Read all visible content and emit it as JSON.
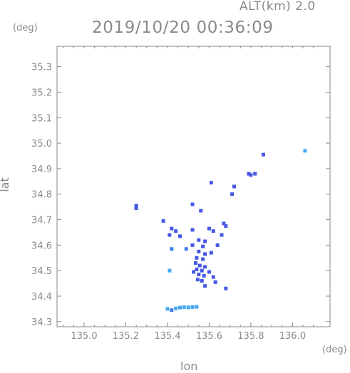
{
  "header": {
    "alt_label": "ALT(km) 2.0",
    "timestamp": "2019/10/20 00:36:09"
  },
  "chart_data": {
    "type": "scatter",
    "title": "2019/10/20 00:36:09",
    "xlabel": "lon",
    "ylabel": "lat",
    "x_unit": "(deg)",
    "y_unit": "(deg)",
    "xlim": [
      134.87,
      136.18
    ],
    "ylim": [
      34.28,
      35.38
    ],
    "x_ticks": [
      "135.0",
      "135.2",
      "135.4",
      "135.6",
      "135.8",
      "136.0"
    ],
    "y_ticks": [
      "34.3",
      "34.4",
      "34.5",
      "34.6",
      "34.7",
      "34.8",
      "34.9",
      "35.0",
      "35.1",
      "35.2",
      "35.3"
    ],
    "grid": false,
    "colors": {
      "echo_dark": "#4657e6",
      "echo_mid": "#3c7ee8",
      "echo_light": "#45a8f2",
      "axis": "#8a8a8a"
    },
    "points": [
      {
        "lon": 136.06,
        "lat": 34.97,
        "level": "light"
      },
      {
        "lon": 135.86,
        "lat": 34.955,
        "level": "dark"
      },
      {
        "lon": 135.79,
        "lat": 34.88,
        "level": "dark"
      },
      {
        "lon": 135.8,
        "lat": 34.875,
        "level": "dark"
      },
      {
        "lon": 135.82,
        "lat": 34.88,
        "level": "dark"
      },
      {
        "lon": 135.61,
        "lat": 34.845,
        "level": "dark"
      },
      {
        "lon": 135.72,
        "lat": 34.83,
        "level": "dark"
      },
      {
        "lon": 135.71,
        "lat": 34.8,
        "level": "dark"
      },
      {
        "lon": 135.25,
        "lat": 34.755,
        "level": "dark"
      },
      {
        "lon": 135.25,
        "lat": 34.745,
        "level": "dark"
      },
      {
        "lon": 135.52,
        "lat": 34.76,
        "level": "dark"
      },
      {
        "lon": 135.56,
        "lat": 34.735,
        "level": "dark"
      },
      {
        "lon": 135.38,
        "lat": 34.695,
        "level": "dark"
      },
      {
        "lon": 135.67,
        "lat": 34.685,
        "level": "dark"
      },
      {
        "lon": 135.68,
        "lat": 34.675,
        "level": "dark"
      },
      {
        "lon": 135.42,
        "lat": 34.665,
        "level": "dark"
      },
      {
        "lon": 135.44,
        "lat": 34.655,
        "level": "dark"
      },
      {
        "lon": 135.52,
        "lat": 34.66,
        "level": "dark"
      },
      {
        "lon": 135.6,
        "lat": 34.665,
        "level": "dark"
      },
      {
        "lon": 135.62,
        "lat": 34.655,
        "level": "dark"
      },
      {
        "lon": 135.41,
        "lat": 34.64,
        "level": "dark"
      },
      {
        "lon": 135.46,
        "lat": 34.635,
        "level": "dark"
      },
      {
        "lon": 135.55,
        "lat": 34.62,
        "level": "dark"
      },
      {
        "lon": 135.58,
        "lat": 34.615,
        "level": "dark"
      },
      {
        "lon": 135.66,
        "lat": 34.64,
        "level": "dark"
      },
      {
        "lon": 135.64,
        "lat": 34.6,
        "level": "dark"
      },
      {
        "lon": 135.52,
        "lat": 34.6,
        "level": "dark"
      },
      {
        "lon": 135.57,
        "lat": 34.595,
        "level": "dark"
      },
      {
        "lon": 135.42,
        "lat": 34.585,
        "level": "mid"
      },
      {
        "lon": 135.49,
        "lat": 34.585,
        "level": "mid"
      },
      {
        "lon": 135.55,
        "lat": 34.575,
        "level": "dark"
      },
      {
        "lon": 135.58,
        "lat": 34.565,
        "level": "dark"
      },
      {
        "lon": 135.61,
        "lat": 34.57,
        "level": "dark"
      },
      {
        "lon": 135.54,
        "lat": 34.55,
        "level": "dark"
      },
      {
        "lon": 135.57,
        "lat": 34.545,
        "level": "dark"
      },
      {
        "lon": 135.535,
        "lat": 34.53,
        "level": "dark"
      },
      {
        "lon": 135.555,
        "lat": 34.52,
        "level": "dark"
      },
      {
        "lon": 135.58,
        "lat": 34.515,
        "level": "dark"
      },
      {
        "lon": 135.54,
        "lat": 34.505,
        "level": "dark"
      },
      {
        "lon": 135.565,
        "lat": 34.5,
        "level": "dark"
      },
      {
        "lon": 135.525,
        "lat": 34.495,
        "level": "dark"
      },
      {
        "lon": 135.55,
        "lat": 34.485,
        "level": "dark"
      },
      {
        "lon": 135.575,
        "lat": 34.48,
        "level": "dark"
      },
      {
        "lon": 135.6,
        "lat": 34.495,
        "level": "dark"
      },
      {
        "lon": 135.545,
        "lat": 34.465,
        "level": "dark"
      },
      {
        "lon": 135.565,
        "lat": 34.46,
        "level": "dark"
      },
      {
        "lon": 135.62,
        "lat": 34.475,
        "level": "dark"
      },
      {
        "lon": 135.63,
        "lat": 34.455,
        "level": "dark"
      },
      {
        "lon": 135.41,
        "lat": 34.5,
        "level": "light"
      },
      {
        "lon": 135.58,
        "lat": 34.44,
        "level": "dark"
      },
      {
        "lon": 135.68,
        "lat": 34.43,
        "level": "dark"
      },
      {
        "lon": 135.4,
        "lat": 34.35,
        "level": "light"
      },
      {
        "lon": 135.42,
        "lat": 34.345,
        "level": "mid"
      },
      {
        "lon": 135.44,
        "lat": 34.352,
        "level": "light"
      },
      {
        "lon": 135.46,
        "lat": 34.355,
        "level": "light"
      },
      {
        "lon": 135.48,
        "lat": 34.357,
        "level": "light"
      },
      {
        "lon": 135.5,
        "lat": 34.356,
        "level": "light"
      },
      {
        "lon": 135.52,
        "lat": 34.357,
        "level": "light"
      },
      {
        "lon": 135.54,
        "lat": 34.358,
        "level": "light"
      }
    ]
  }
}
